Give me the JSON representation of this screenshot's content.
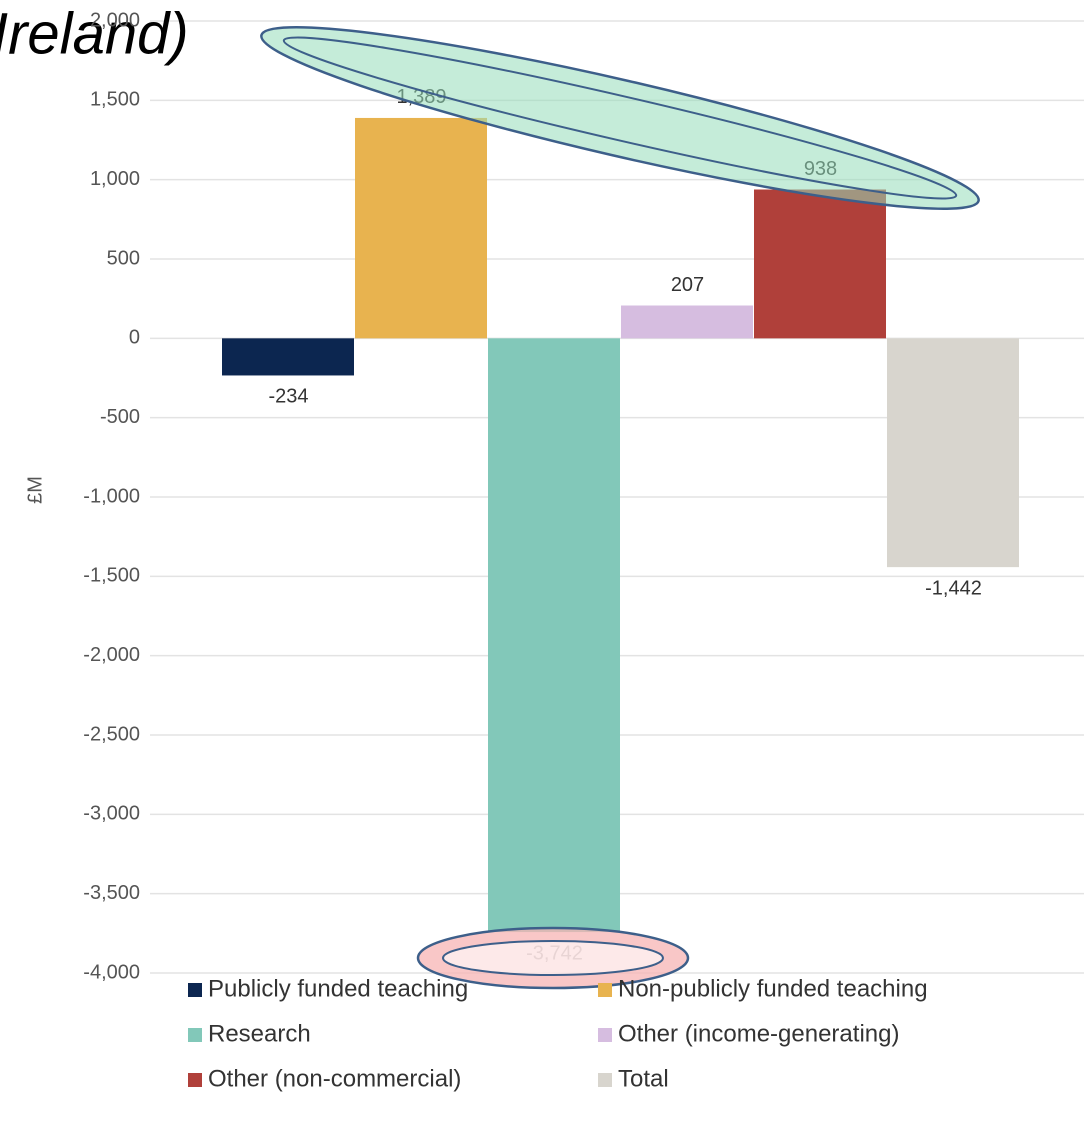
{
  "chart_data": {
    "type": "bar",
    "title": "Ireland)",
    "y_label": "£M",
    "ylim": [
      -4000,
      2000
    ],
    "yticks": [
      {
        "value": 2000,
        "label": "2,000"
      },
      {
        "value": 1500,
        "label": "1,500"
      },
      {
        "value": 1000,
        "label": "1,000"
      },
      500,
      0,
      -500,
      {
        "value": -1000,
        "label": "-1,000"
      },
      {
        "value": -1500,
        "label": "-1,500"
      },
      {
        "value": -2000,
        "label": "-2,000"
      },
      {
        "value": -2500,
        "label": "-2,500"
      },
      {
        "value": -3000,
        "label": "-3,000"
      },
      {
        "value": -3500,
        "label": "-3,500"
      },
      {
        "value": -4000,
        "label": "-4,000"
      }
    ],
    "grid": true,
    "legend": "bottom",
    "series": [
      {
        "name": "Publicly funded teaching",
        "color": "#0c2650",
        "values": [
          -234
        ]
      },
      {
        "name": "Non-publicly funded teaching",
        "color": "#e8b34f",
        "values": [
          1389
        ],
        "value_labels": [
          "1,389"
        ]
      },
      {
        "name": "Research",
        "color": "#82c8b9",
        "values": [
          -3742
        ],
        "value_labels": [
          "-3,742"
        ]
      },
      {
        "name": "Other (income-generating)",
        "color": "#d6bde0",
        "values": [
          207
        ]
      },
      {
        "name": "Other (non-commercial)",
        "color": "#b0403a",
        "values": [
          938
        ]
      },
      {
        "name": "Total",
        "color": "#d8d5ce",
        "values": [
          -1442
        ],
        "value_labels": [
          "-1,442"
        ]
      }
    ]
  }
}
